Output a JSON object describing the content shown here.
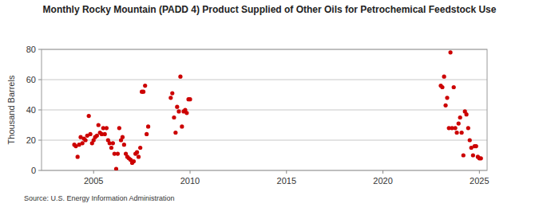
{
  "chart_data": {
    "type": "scatter",
    "title": "Monthly Rocky Mountain (PADD 4) Product Supplied of Other Oils for Petrochemical Feedstock Use",
    "y_label": "Thousand Barrels",
    "source": "Source: U.S. Energy Information Administration",
    "color": "#cc0000",
    "marker": "circle",
    "grid": true,
    "x": [
      2004.0,
      2004.08,
      2004.17,
      2004.25,
      2004.33,
      2004.42,
      2004.5,
      2004.58,
      2004.67,
      2004.75,
      2004.83,
      2004.92,
      2005.0,
      2005.08,
      2005.17,
      2005.25,
      2005.33,
      2005.42,
      2005.5,
      2005.58,
      2005.67,
      2005.75,
      2005.83,
      2005.92,
      2006.0,
      2006.08,
      2006.17,
      2006.25,
      2006.33,
      2006.42,
      2006.5,
      2006.58,
      2006.67,
      2006.75,
      2006.83,
      2006.92,
      2007.0,
      2007.08,
      2007.17,
      2007.25,
      2007.33,
      2007.42,
      2007.5,
      2007.58,
      2007.67,
      2007.75,
      2007.83,
      2009.0,
      2009.08,
      2009.17,
      2009.25,
      2009.33,
      2009.42,
      2009.5,
      2009.58,
      2009.67,
      2009.75,
      2009.83,
      2009.92,
      2010.0,
      2023.0,
      2023.08,
      2023.17,
      2023.25,
      2023.33,
      2023.42,
      2023.5,
      2023.58,
      2023.67,
      2023.75,
      2023.83,
      2023.92,
      2024.0,
      2024.08,
      2024.17,
      2024.25,
      2024.33,
      2024.42,
      2024.5,
      2024.58,
      2024.67,
      2024.75,
      2024.83,
      2024.92,
      2025.0,
      2025.08
    ],
    "values": [
      17,
      16,
      9,
      17,
      22,
      18,
      21,
      20,
      23,
      36,
      24,
      18,
      20,
      22,
      23,
      30,
      25,
      24,
      28,
      24,
      28,
      20,
      18,
      15,
      18,
      11,
      1,
      11,
      28,
      20,
      22,
      17,
      11,
      9,
      8,
      7,
      5,
      6,
      11,
      12,
      9,
      15,
      52,
      52,
      56,
      24,
      29,
      48,
      51,
      35,
      25,
      42,
      39,
      62,
      29,
      39,
      40,
      38,
      47,
      47,
      56,
      55,
      62,
      43,
      48,
      28,
      78,
      28,
      55,
      28,
      25,
      31,
      35,
      25,
      10,
      39,
      37,
      28,
      20,
      15,
      10,
      16,
      16,
      9,
      8,
      8
    ],
    "xlim": [
      2002.3,
      2025.4
    ],
    "xticks": [
      2005,
      2010,
      2015,
      2020,
      2025
    ],
    "ylim": [
      0,
      80
    ],
    "yticks": [
      0,
      20,
      40,
      60,
      80
    ]
  }
}
